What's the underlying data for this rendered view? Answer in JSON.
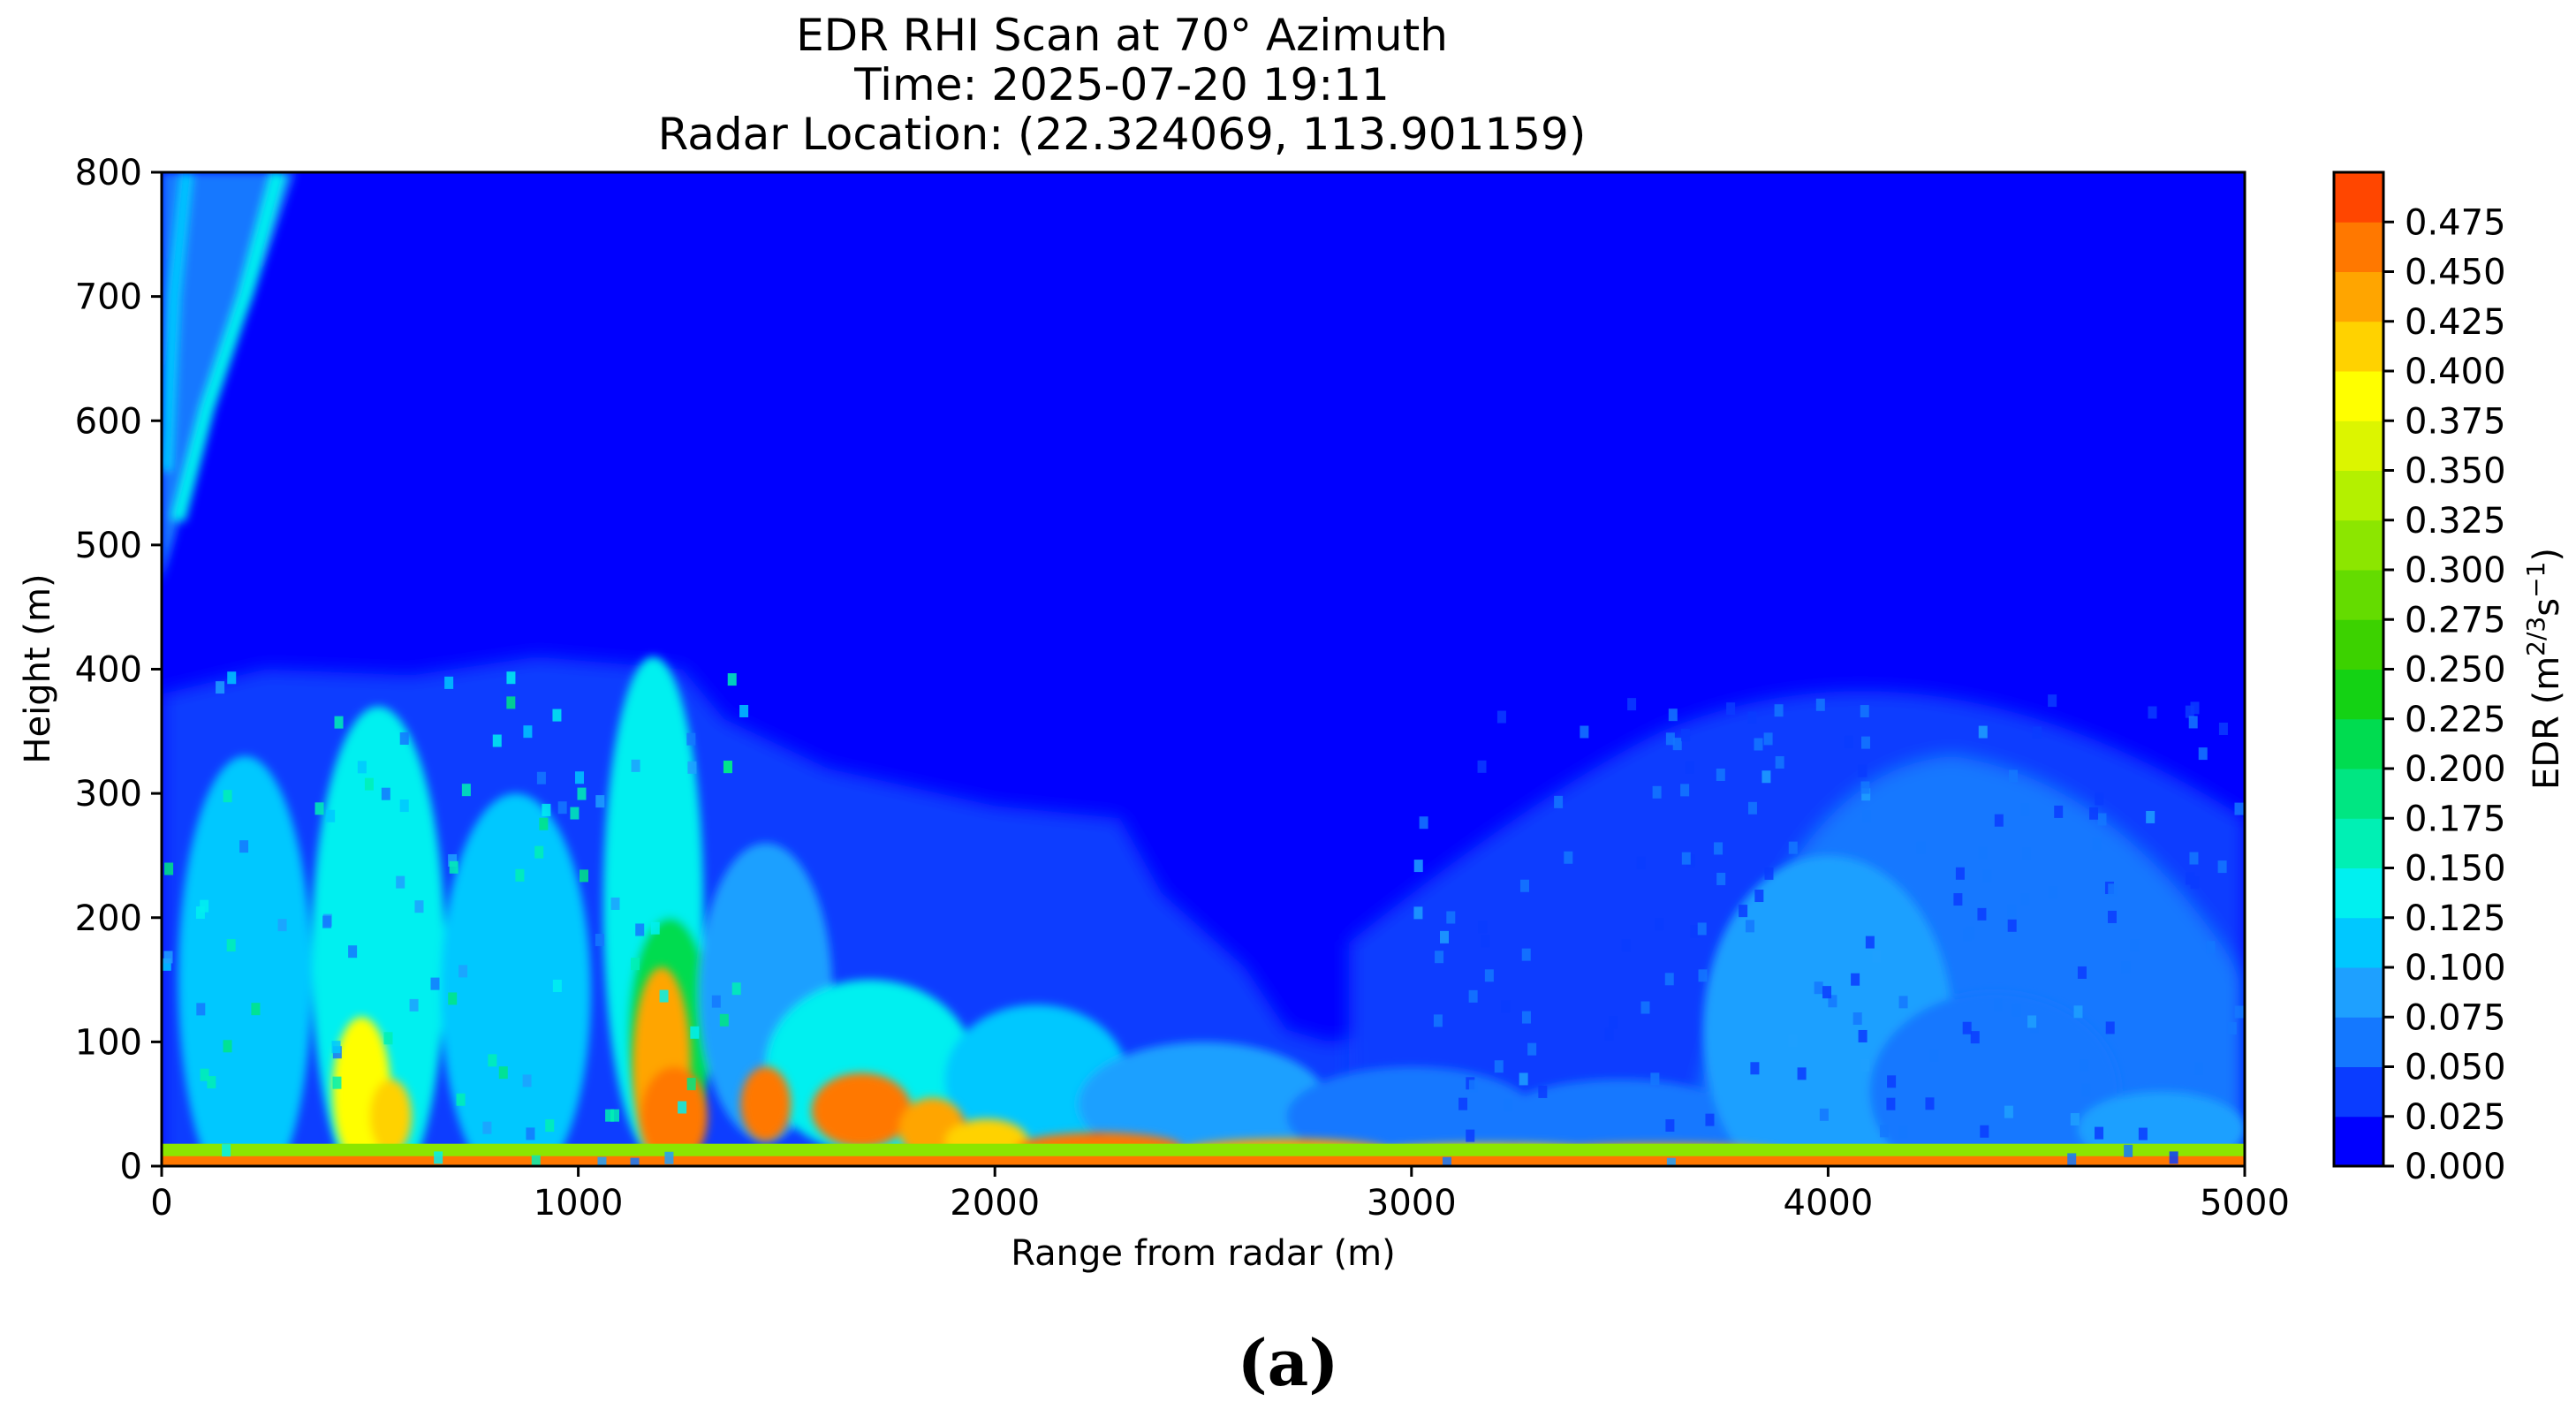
{
  "chart_data": {
    "type": "heatmap",
    "title_lines": [
      "EDR RHI Scan at 70° Azimuth",
      "Time: 2025-07-20 19:11",
      "Radar Location: (22.324069, 113.901159)"
    ],
    "xlabel": "Range from radar (m)",
    "ylabel": "Height (m)",
    "xlim": [
      0,
      5000
    ],
    "ylim": [
      0,
      800
    ],
    "xticks": [
      0,
      1000,
      2000,
      3000,
      4000,
      5000
    ],
    "yticks": [
      0,
      100,
      200,
      300,
      400,
      500,
      600,
      700,
      800
    ],
    "colorbar": {
      "label": "EDR (m^2/3 s^-1)",
      "min": 0.0,
      "max": 0.5,
      "ticks": [
        0.0,
        0.025,
        0.05,
        0.075,
        0.1,
        0.125,
        0.15,
        0.175,
        0.2,
        0.225,
        0.25,
        0.275,
        0.3,
        0.325,
        0.35,
        0.375,
        0.4,
        0.425,
        0.45,
        0.475
      ],
      "tick_labels": [
        "0.000",
        "0.025",
        "0.050",
        "0.075",
        "0.100",
        "0.125",
        "0.150",
        "0.175",
        "0.200",
        "0.225",
        "0.250",
        "0.275",
        "0.300",
        "0.325",
        "0.350",
        "0.375",
        "0.400",
        "0.425",
        "0.450",
        "0.475"
      ],
      "colors": [
        "#0000ff",
        "#0a3cff",
        "#1478ff",
        "#1ea0ff",
        "#00c8ff",
        "#00f0f0",
        "#00f0b4",
        "#00e682",
        "#00dc50",
        "#14d214",
        "#3cd200",
        "#64dc00",
        "#8ce600",
        "#b4f000",
        "#dcf500",
        "#ffff00",
        "#ffd200",
        "#ffa500",
        "#ff7800",
        "#ff4600"
      ]
    },
    "grid": false,
    "regions": [
      {
        "name": "upper background",
        "x": [
          0,
          5000
        ],
        "y": [
          400,
          800
        ],
        "edr": 0.01
      },
      {
        "name": "near-surface band",
        "x": [
          0,
          5000
        ],
        "y": [
          0,
          20
        ],
        "edr": 0.45
      },
      {
        "name": "convective turbulence",
        "x": [
          0,
          1300
        ],
        "y": [
          0,
          420
        ],
        "edr": 0.15
      },
      {
        "name": "strong turbulence core",
        "x": [
          1100,
          1300
        ],
        "y": [
          0,
          170
        ],
        "edr": 0.43
      },
      {
        "name": "hot spot",
        "x": [
          1500,
          1850
        ],
        "y": [
          0,
          80
        ],
        "edr": 0.47
      },
      {
        "name": "right dome",
        "x": [
          3000,
          5000
        ],
        "y": [
          0,
          400
        ],
        "edr": 0.05
      },
      {
        "name": "left plume",
        "x": [
          0,
          320
        ],
        "y": [
          500,
          800
        ],
        "edr": 0.12
      }
    ]
  },
  "figure": {
    "caption": "(a)"
  }
}
